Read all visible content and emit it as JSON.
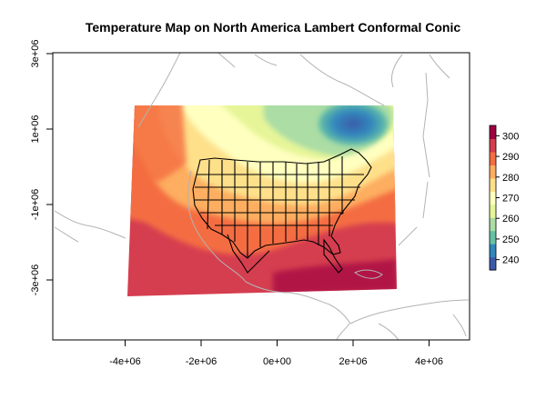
{
  "title": "Temperature Map on North America Lambert Conformal Conic",
  "x_axis": {
    "ticks": [
      {
        "value": -4000000,
        "label": "-4e+06"
      },
      {
        "value": -2000000,
        "label": "-2e+06"
      },
      {
        "value": 0,
        "label": "0e+00"
      },
      {
        "value": 2000000,
        "label": "2e+06"
      },
      {
        "value": 4000000,
        "label": "4e+06"
      }
    ]
  },
  "y_axis": {
    "ticks": [
      {
        "value": 3000000,
        "label": "3e+06"
      },
      {
        "value": 1000000,
        "label": "1e+06"
      },
      {
        "value": -1000000,
        "label": "-1e+06"
      },
      {
        "value": -3000000,
        "label": "-3e+06"
      }
    ]
  },
  "colorbar": {
    "ticks": [
      {
        "value": 240,
        "label": "240"
      },
      {
        "value": 250,
        "label": "250"
      },
      {
        "value": 260,
        "label": "260"
      },
      {
        "value": 270,
        "label": "270"
      },
      {
        "value": 280,
        "label": "280"
      },
      {
        "value": 290,
        "label": "290"
      },
      {
        "value": 300,
        "label": "300"
      }
    ],
    "colors": [
      "#3B5BA8",
      "#3288BD",
      "#66C2A5",
      "#ABDDA4",
      "#E6F598",
      "#FFFFBF",
      "#FEE08B",
      "#FDAE61",
      "#F46D43",
      "#D53E4F",
      "#9E0142"
    ]
  }
}
